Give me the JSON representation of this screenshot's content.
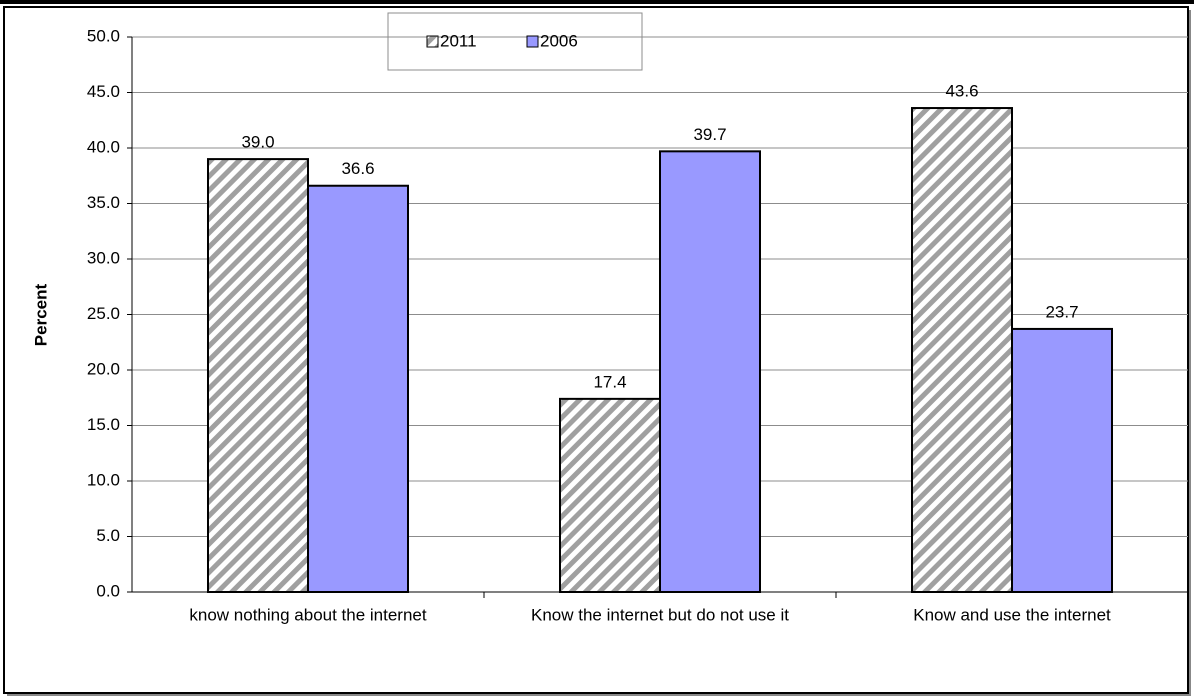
{
  "chart_data": {
    "type": "bar",
    "y_label": "Percent",
    "categories": [
      "know nothing about the internet",
      "Know the internet but do not use it",
      "Know and use the internet"
    ],
    "series": [
      {
        "name": "2011",
        "color": "#a0a0a0",
        "pattern": "diagonal",
        "values": [
          39.0,
          17.4,
          43.6
        ],
        "value_labels": [
          "39.0",
          "17.4",
          "43.6"
        ]
      },
      {
        "name": "2006",
        "color": "#9999ff",
        "values": [
          36.6,
          39.7,
          23.7
        ],
        "value_labels": [
          "36.6",
          "39.7",
          "23.7"
        ]
      }
    ],
    "ylim": [
      0,
      50
    ],
    "yticks": [
      {
        "value": 0,
        "label": "0.0"
      },
      {
        "value": 5,
        "label": "5.0"
      },
      {
        "value": 10,
        "label": "10.0"
      },
      {
        "value": 15,
        "label": "15.0"
      },
      {
        "value": 20,
        "label": "20.0"
      },
      {
        "value": 25,
        "label": "25.0"
      },
      {
        "value": 30,
        "label": "30.0"
      },
      {
        "value": 35,
        "label": "35.0"
      },
      {
        "value": 40,
        "label": "40.0"
      },
      {
        "value": 45,
        "label": "45.0"
      },
      {
        "value": 50,
        "label": "50.0"
      }
    ],
    "grid": true
  }
}
